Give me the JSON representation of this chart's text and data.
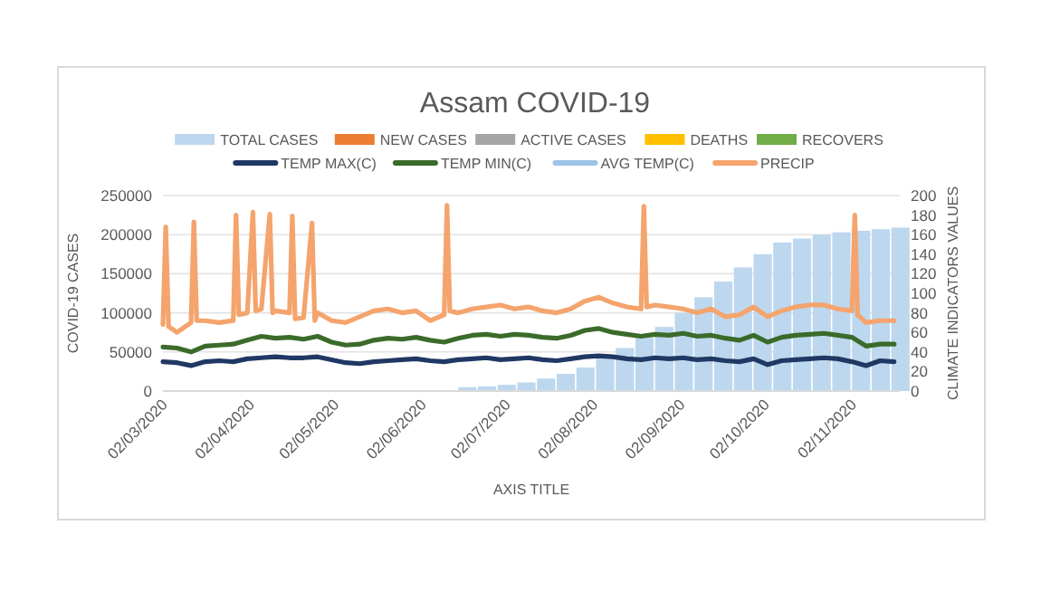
{
  "chart_data": {
    "type": "line",
    "title": "Assam COVID-19",
    "xlabel": "AXIS TITLE",
    "ylabel": "COVID-19 CASES",
    "y2label": "CLIMATE INDICATORS VALUES",
    "xlim": [
      "2020-03-02",
      "2020-11-19"
    ],
    "xticks": [
      {
        "value": "2020-03-02",
        "label": "02/03/2020"
      },
      {
        "value": "2020-04-02",
        "label": "02/04/2020"
      },
      {
        "value": "2020-05-02",
        "label": "02/05/2020"
      },
      {
        "value": "2020-06-02",
        "label": "02/06/2020"
      },
      {
        "value": "2020-07-02",
        "label": "02/07/2020"
      },
      {
        "value": "2020-08-02",
        "label": "02/08/2020"
      },
      {
        "value": "2020-09-02",
        "label": "02/09/2020"
      },
      {
        "value": "2020-10-02",
        "label": "02/10/2020"
      },
      {
        "value": "2020-11-02",
        "label": "02/11/2020"
      }
    ],
    "ylim": [
      0,
      250000
    ],
    "yticks": [
      0,
      50000,
      100000,
      150000,
      200000,
      250000
    ],
    "y2lim": [
      0,
      200
    ],
    "y2ticks": [
      0,
      20,
      40,
      60,
      80,
      100,
      120,
      140,
      160,
      180,
      200
    ],
    "grid": "y",
    "legend": "top",
    "x": [
      "2020-03-02",
      "2020-03-07",
      "2020-03-12",
      "2020-03-17",
      "2020-03-22",
      "2020-03-27",
      "2020-04-01",
      "2020-04-06",
      "2020-04-11",
      "2020-04-16",
      "2020-04-21",
      "2020-04-26",
      "2020-05-01",
      "2020-05-06",
      "2020-05-11",
      "2020-05-16",
      "2020-05-21",
      "2020-05-26",
      "2020-05-31",
      "2020-06-05",
      "2020-06-10",
      "2020-06-15",
      "2020-06-20",
      "2020-06-25",
      "2020-06-30",
      "2020-07-05",
      "2020-07-10",
      "2020-07-15",
      "2020-07-20",
      "2020-07-25",
      "2020-07-30",
      "2020-08-04",
      "2020-08-09",
      "2020-08-14",
      "2020-08-19",
      "2020-08-24",
      "2020-08-29",
      "2020-09-03",
      "2020-09-08",
      "2020-09-13",
      "2020-09-18",
      "2020-09-23",
      "2020-09-28",
      "2020-10-03",
      "2020-10-08",
      "2020-10-13",
      "2020-10-18",
      "2020-10-23",
      "2020-10-28",
      "2020-11-02",
      "2020-11-07",
      "2020-11-12",
      "2020-11-17"
    ],
    "series": [
      {
        "name": "TOTAL CASES",
        "type": "bar",
        "color": "#bdd7ee",
        "x": [
          "2020-06-15",
          "2020-06-22",
          "2020-06-29",
          "2020-07-06",
          "2020-07-13",
          "2020-07-20",
          "2020-07-27",
          "2020-08-03",
          "2020-08-10",
          "2020-08-17",
          "2020-08-24",
          "2020-08-31",
          "2020-09-07",
          "2020-09-14",
          "2020-09-21",
          "2020-09-28",
          "2020-10-05",
          "2020-10-12",
          "2020-10-19",
          "2020-10-26",
          "2020-11-02",
          "2020-11-09",
          "2020-11-16"
        ],
        "values": [
          5000,
          6000,
          8000,
          11000,
          16000,
          22000,
          30000,
          42000,
          55000,
          68000,
          82000,
          100000,
          120000,
          140000,
          158000,
          175000,
          190000,
          195000,
          200000,
          203000,
          205000,
          207000,
          209000
        ]
      },
      {
        "name": "NEW CASES",
        "type": "bar",
        "color": "#ed7d31",
        "values": [
          null,
          null,
          null,
          null,
          null,
          null,
          null,
          null,
          null,
          null,
          null,
          null,
          null,
          null,
          null,
          null,
          null,
          null,
          null,
          null,
          null,
          null,
          null,
          null,
          null,
          null,
          null,
          null,
          null,
          null,
          null,
          null,
          null,
          null,
          null,
          null,
          null,
          null,
          null,
          null,
          null,
          null,
          null,
          null,
          null,
          null,
          null,
          null,
          null,
          null,
          null,
          null,
          null
        ]
      },
      {
        "name": "ACTIVE CASES",
        "type": "bar",
        "color": "#a5a5a5",
        "values": [
          null,
          null,
          null,
          null,
          null,
          null,
          null,
          null,
          null,
          null,
          null,
          null,
          null,
          null,
          null,
          null,
          null,
          null,
          null,
          null,
          null,
          null,
          null,
          null,
          null,
          null,
          null,
          null,
          null,
          null,
          null,
          null,
          null,
          null,
          null,
          null,
          null,
          null,
          null,
          null,
          null,
          null,
          null,
          null,
          null,
          null,
          null,
          null,
          null,
          null,
          null,
          null,
          null
        ]
      },
      {
        "name": "DEATHS",
        "type": "bar",
        "color": "#ffc000",
        "values": [
          null,
          null,
          null,
          null,
          null,
          null,
          null,
          null,
          null,
          null,
          null,
          null,
          null,
          null,
          null,
          null,
          null,
          null,
          null,
          null,
          null,
          null,
          null,
          null,
          null,
          null,
          null,
          null,
          null,
          null,
          null,
          null,
          null,
          null,
          null,
          null,
          null,
          null,
          null,
          null,
          null,
          null,
          null,
          null,
          null,
          null,
          null,
          null,
          null,
          null,
          null,
          null,
          null
        ]
      },
      {
        "name": "RECOVERS",
        "type": "bar",
        "color": "#70ad47",
        "values": [
          null,
          null,
          null,
          null,
          null,
          null,
          null,
          null,
          null,
          null,
          null,
          null,
          null,
          null,
          null,
          null,
          null,
          null,
          null,
          null,
          null,
          null,
          null,
          null,
          null,
          null,
          null,
          null,
          null,
          null,
          null,
          null,
          null,
          null,
          null,
          null,
          null,
          null,
          null,
          null,
          null,
          null,
          null,
          null,
          null,
          null,
          null,
          null,
          null,
          null,
          null,
          null,
          null
        ]
      },
      {
        "name": "TEMP MAX(C)",
        "axis": "y2",
        "color": "#203864",
        "values": [
          30,
          29,
          26,
          30,
          31,
          30,
          33,
          34,
          35,
          34,
          34,
          35,
          32,
          29,
          28,
          30,
          31,
          32,
          33,
          31,
          30,
          32,
          33,
          34,
          32,
          33,
          34,
          32,
          31,
          33,
          35,
          36,
          35,
          33,
          32,
          34,
          33,
          34,
          32,
          33,
          31,
          30,
          33,
          27,
          31,
          32,
          33,
          34,
          33,
          30,
          26,
          31,
          30
        ]
      },
      {
        "name": "TEMP MIN(C)",
        "axis": "y2",
        "color": "#3b6b2a",
        "values": [
          45,
          44,
          40,
          46,
          47,
          48,
          52,
          56,
          54,
          55,
          53,
          56,
          50,
          47,
          48,
          52,
          54,
          53,
          55,
          52,
          50,
          54,
          57,
          58,
          56,
          58,
          57,
          55,
          54,
          57,
          62,
          64,
          60,
          58,
          56,
          58,
          57,
          59,
          56,
          57,
          54,
          52,
          57,
          50,
          55,
          57,
          58,
          59,
          57,
          55,
          46,
          48,
          48
        ]
      },
      {
        "name": "AVG TEMP(C)",
        "axis": "y2",
        "color": "#9dc3e6",
        "values": [
          null,
          null,
          null,
          null,
          null,
          null,
          null,
          null,
          null,
          null,
          null,
          null,
          null,
          null,
          null,
          null,
          null,
          null,
          null,
          null,
          null,
          null,
          null,
          null,
          null,
          null,
          null,
          null,
          null,
          null,
          null,
          null,
          null,
          null,
          null,
          null,
          null,
          null,
          null,
          null,
          null,
          null,
          null,
          null,
          null,
          null,
          null,
          null,
          null,
          null,
          null,
          null,
          null
        ]
      },
      {
        "name": "PRECIP",
        "axis": "y2",
        "color": "#f4a46c",
        "x": [
          "2020-03-02",
          "2020-03-03",
          "2020-03-04",
          "2020-03-07",
          "2020-03-12",
          "2020-03-13",
          "2020-03-14",
          "2020-03-17",
          "2020-03-22",
          "2020-03-27",
          "2020-03-28",
          "2020-03-29",
          "2020-04-01",
          "2020-04-03",
          "2020-04-04",
          "2020-04-06",
          "2020-04-09",
          "2020-04-10",
          "2020-04-11",
          "2020-04-16",
          "2020-04-17",
          "2020-04-18",
          "2020-04-21",
          "2020-04-24",
          "2020-04-25",
          "2020-04-26",
          "2020-05-01",
          "2020-05-06",
          "2020-05-11",
          "2020-05-16",
          "2020-05-21",
          "2020-05-26",
          "2020-05-31",
          "2020-06-05",
          "2020-06-10",
          "2020-06-11",
          "2020-06-12",
          "2020-06-15",
          "2020-06-20",
          "2020-06-25",
          "2020-06-30",
          "2020-07-05",
          "2020-07-10",
          "2020-07-15",
          "2020-07-20",
          "2020-07-25",
          "2020-07-30",
          "2020-08-04",
          "2020-08-09",
          "2020-08-14",
          "2020-08-19",
          "2020-08-20",
          "2020-08-21",
          "2020-08-24",
          "2020-08-29",
          "2020-09-03",
          "2020-09-08",
          "2020-09-13",
          "2020-09-18",
          "2020-09-23",
          "2020-09-28",
          "2020-10-03",
          "2020-10-08",
          "2020-10-13",
          "2020-10-18",
          "2020-10-23",
          "2020-10-28",
          "2020-11-02",
          "2020-11-03",
          "2020-11-04",
          "2020-11-07",
          "2020-11-12",
          "2020-11-17"
        ],
        "values": [
          68,
          168,
          66,
          60,
          70,
          173,
          72,
          72,
          70,
          72,
          180,
          78,
          80,
          183,
          82,
          84,
          181,
          80,
          82,
          80,
          179,
          74,
          75,
          172,
          72,
          80,
          72,
          70,
          76,
          82,
          84,
          80,
          82,
          72,
          78,
          190,
          82,
          80,
          84,
          86,
          88,
          84,
          86,
          82,
          80,
          84,
          92,
          96,
          90,
          86,
          84,
          189,
          86,
          88,
          86,
          84,
          80,
          84,
          76,
          78,
          86,
          76,
          82,
          86,
          88,
          88,
          84,
          82,
          180,
          78,
          70,
          72,
          72
        ]
      }
    ]
  }
}
